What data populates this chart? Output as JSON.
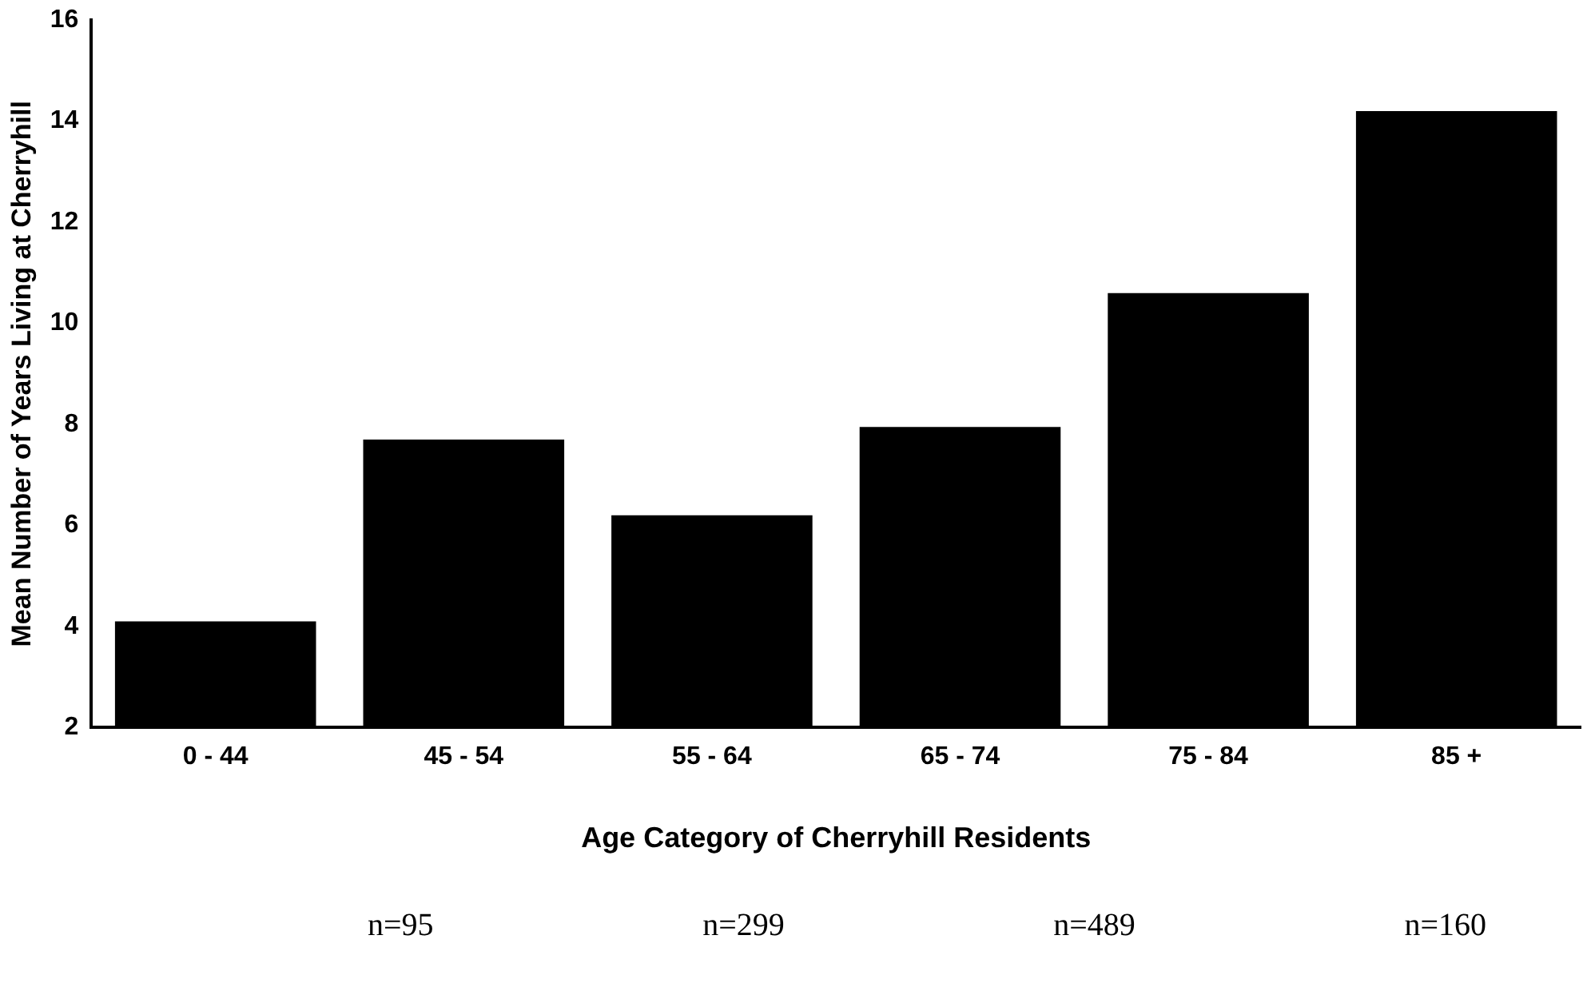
{
  "chart_data": {
    "type": "bar",
    "xlabel": "Age Category of Cherryhill Residents",
    "ylabel": "Mean Number of Years Living at Cherryhill",
    "categories": [
      "0 - 44",
      "45 - 54",
      "55 - 64",
      "65 - 74",
      "75 - 84",
      "85 +"
    ],
    "values": [
      4.1,
      7.7,
      6.2,
      7.95,
      10.6,
      14.2
    ],
    "color": "#000000",
    "ylim": [
      2,
      16
    ],
    "yticks": [
      2,
      4,
      6,
      8,
      10,
      12,
      14,
      16
    ],
    "grid": false,
    "legend": false,
    "annotations": [
      "n=95",
      "n=299",
      "n=489",
      "n=160"
    ]
  }
}
